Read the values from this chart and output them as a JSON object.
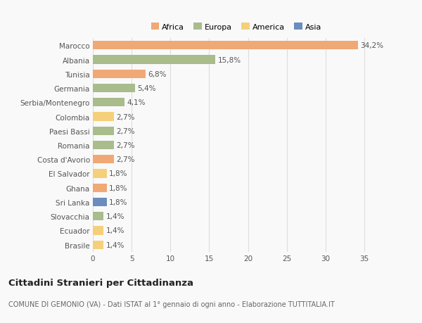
{
  "categories": [
    "Marocco",
    "Albania",
    "Tunisia",
    "Germania",
    "Serbia/Montenegro",
    "Colombia",
    "Paesi Bassi",
    "Romania",
    "Costa d'Avorio",
    "El Salvador",
    "Ghana",
    "Sri Lanka",
    "Slovacchia",
    "Ecuador",
    "Brasile"
  ],
  "values": [
    34.2,
    15.8,
    6.8,
    5.4,
    4.1,
    2.7,
    2.7,
    2.7,
    2.7,
    1.8,
    1.8,
    1.8,
    1.4,
    1.4,
    1.4
  ],
  "labels": [
    "34,2%",
    "15,8%",
    "6,8%",
    "5,4%",
    "4,1%",
    "2,7%",
    "2,7%",
    "2,7%",
    "2,7%",
    "1,8%",
    "1,8%",
    "1,8%",
    "1,4%",
    "1,4%",
    "1,4%"
  ],
  "colors": [
    "#F0A875",
    "#A8BC8C",
    "#F0A875",
    "#A8BC8C",
    "#A8BC8C",
    "#F5D07A",
    "#A8BC8C",
    "#A8BC8C",
    "#F0A875",
    "#F5D07A",
    "#F0A875",
    "#6C8CBF",
    "#A8BC8C",
    "#F5D07A",
    "#F5D07A"
  ],
  "legend": {
    "Africa": "#F0A875",
    "Europa": "#A8BC8C",
    "America": "#F5D07A",
    "Asia": "#6C8CBF"
  },
  "title": "Cittadini Stranieri per Cittadinanza",
  "subtitle": "COMUNE DI GEMONIO (VA) - Dati ISTAT al 1° gennaio di ogni anno - Elaborazione TUTTITALIA.IT",
  "xlim": [
    0,
    37
  ],
  "xticks": [
    0,
    5,
    10,
    15,
    20,
    25,
    30,
    35
  ],
  "bg_color": "#f9f9f9",
  "grid_color": "#dddddd",
  "bar_height": 0.6
}
